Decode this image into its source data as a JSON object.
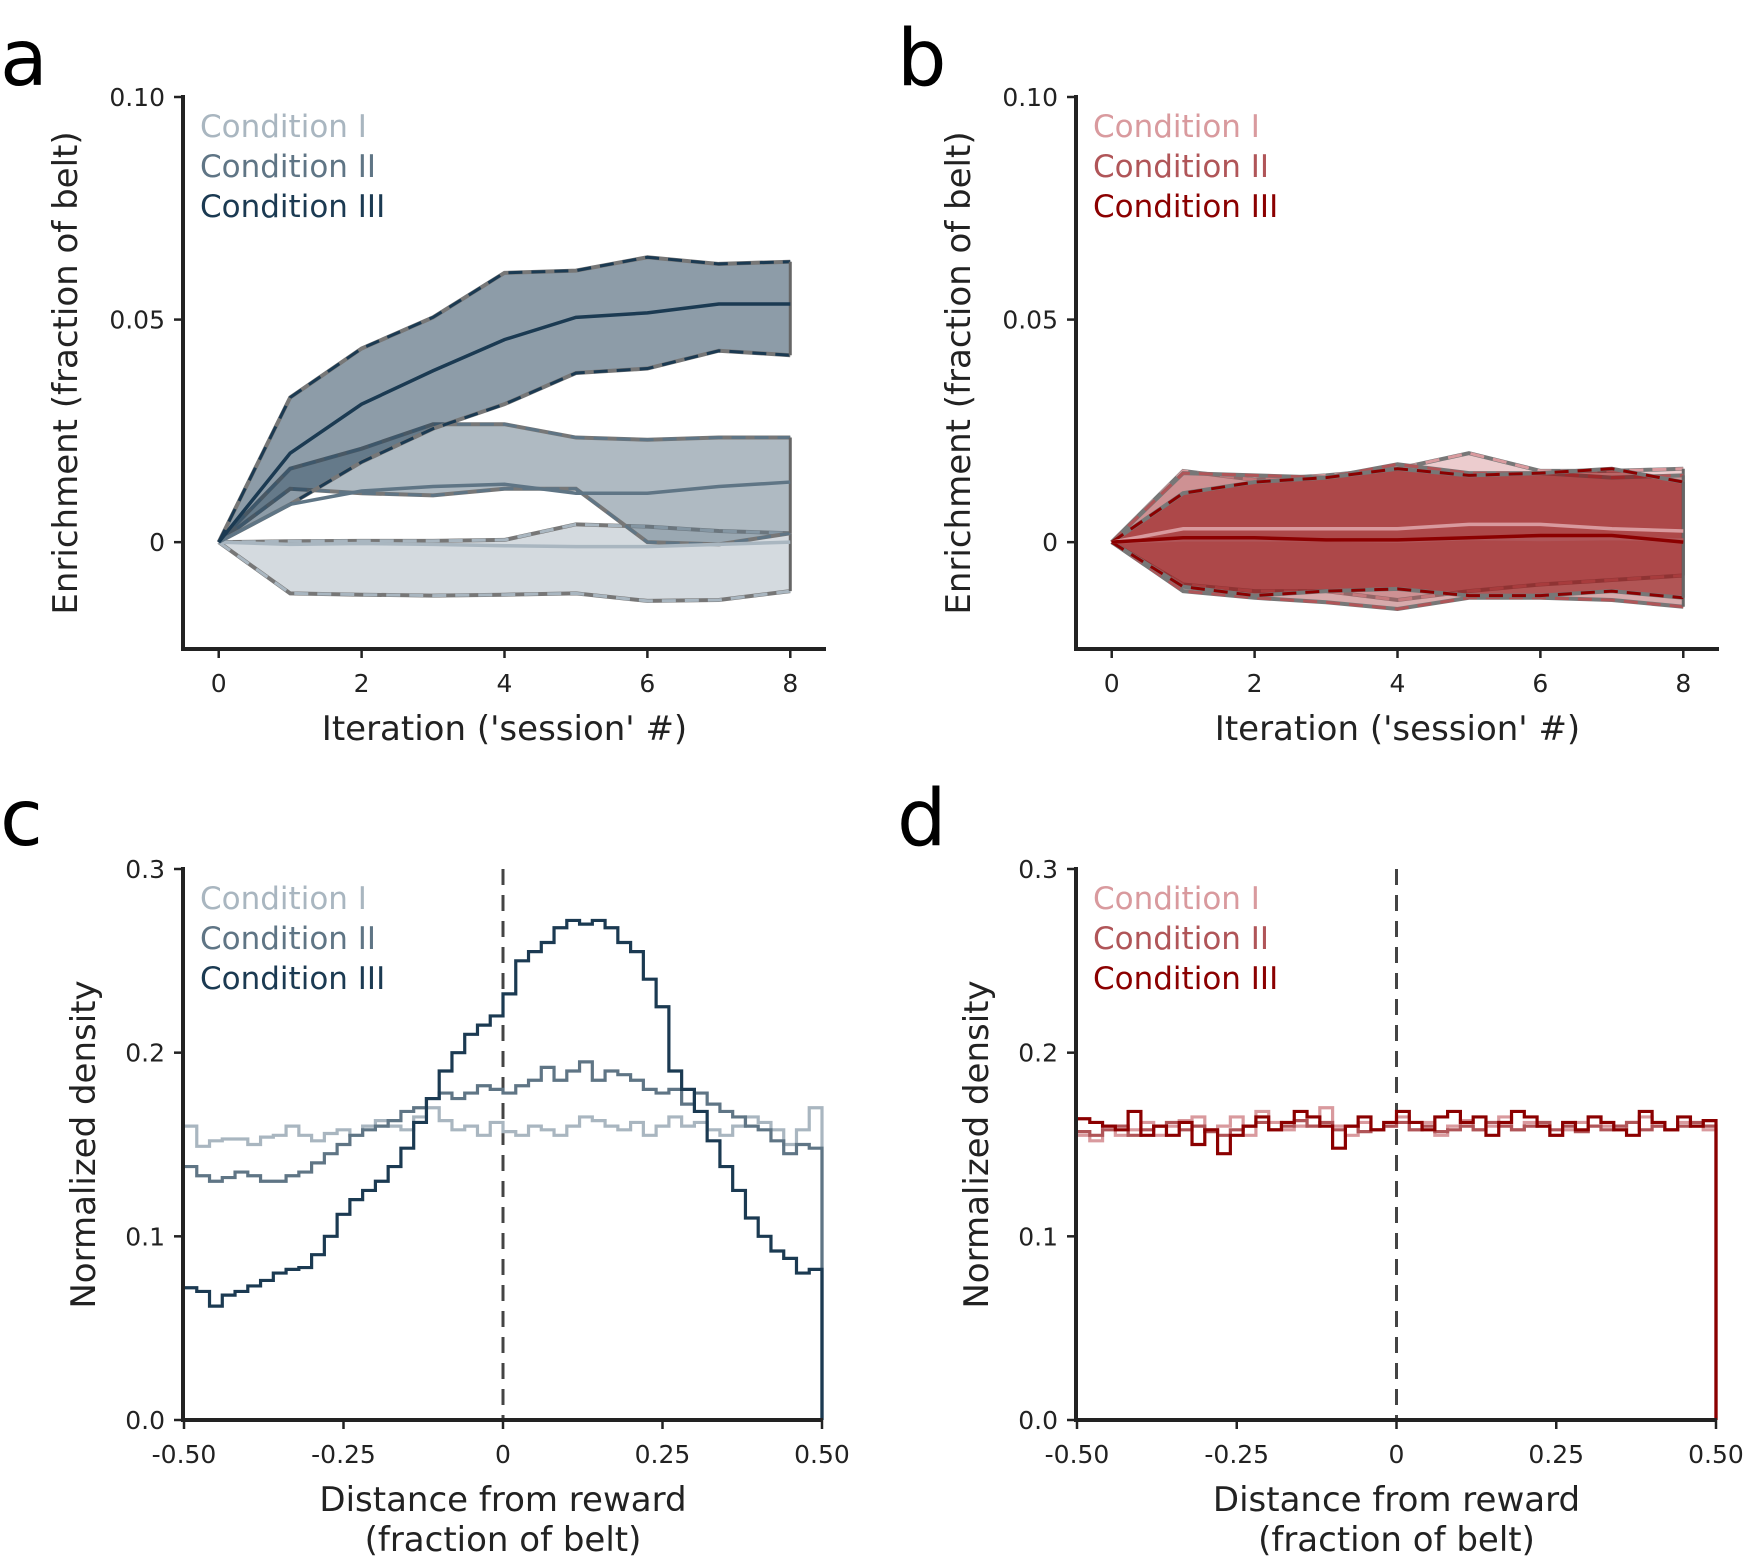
{
  "chart_data": [
    {
      "panel": "a",
      "type": "area",
      "title": "",
      "xlabel": "Iteration ('session' #)",
      "ylabel": "Enrichment (fraction of belt)",
      "xlim": [
        -0.5,
        8.5
      ],
      "ylim": [
        -0.024,
        0.1
      ],
      "xticks": [
        0,
        2,
        4,
        6,
        8
      ],
      "xtick_labels": [
        "0",
        "2",
        "4",
        "6",
        "8"
      ],
      "yticks": [
        0,
        0.05,
        0.1
      ],
      "ytick_labels": [
        "0",
        "0.05",
        "0.10"
      ],
      "legend_position": "top-left",
      "x": [
        0,
        1,
        2,
        3,
        4,
        5,
        6,
        7,
        8
      ],
      "series": [
        {
          "name": "Condition I",
          "color": "#a9b6c0",
          "mean": [
            0,
            -0.0005,
            -0.0003,
            -0.0005,
            -0.0008,
            -0.001,
            -0.001,
            -0.0005,
            0
          ],
          "lower": [
            0,
            -0.0115,
            -0.0118,
            -0.012,
            -0.0118,
            -0.0115,
            -0.0132,
            -0.013,
            -0.011
          ],
          "upper": [
            0,
            0.0002,
            0.0003,
            0.0003,
            0.0005,
            0.004,
            0.0035,
            0.0025,
            0.002
          ]
        },
        {
          "name": "Condition II",
          "color": "#5f7585",
          "mean": [
            0,
            0.0085,
            0.0115,
            0.0125,
            0.013,
            0.011,
            0.011,
            0.0125,
            0.0135
          ],
          "lower": [
            0,
            0.012,
            0.011,
            0.0105,
            0.012,
            0.012,
            0.0,
            -0.0005,
            0.002
          ],
          "upper": [
            0,
            0.0165,
            0.021,
            0.0265,
            0.0265,
            0.0235,
            0.023,
            0.0235,
            0.0235
          ]
        },
        {
          "name": "Condition III",
          "color": "#1b3a52",
          "mean": [
            0,
            0.02,
            0.031,
            0.0385,
            0.0455,
            0.0505,
            0.0515,
            0.0535,
            0.0535
          ],
          "lower": [
            0,
            0.0085,
            0.018,
            0.0255,
            0.031,
            0.038,
            0.039,
            0.043,
            0.042
          ],
          "upper": [
            0,
            0.0325,
            0.0435,
            0.0505,
            0.0605,
            0.061,
            0.064,
            0.0625,
            0.063
          ]
        }
      ]
    },
    {
      "panel": "b",
      "type": "area",
      "title": "",
      "xlabel": "Iteration ('session' #)",
      "ylabel": "Enrichment (fraction of belt)",
      "xlim": [
        -0.5,
        8.5
      ],
      "ylim": [
        -0.024,
        0.1
      ],
      "xticks": [
        0,
        2,
        4,
        6,
        8
      ],
      "xtick_labels": [
        "0",
        "2",
        "4",
        "6",
        "8"
      ],
      "yticks": [
        0,
        0.05,
        0.1
      ],
      "ytick_labels": [
        "0",
        "0.05",
        "0.10"
      ],
      "legend_position": "top-left",
      "x": [
        0,
        1,
        2,
        3,
        4,
        5,
        6,
        7,
        8
      ],
      "series": [
        {
          "name": "Condition I",
          "color": "#d99a9e",
          "mean": [
            0,
            0.003,
            0.003,
            0.003,
            0.003,
            0.004,
            0.004,
            0.003,
            0.0025
          ],
          "lower": [
            0,
            -0.0095,
            -0.011,
            -0.011,
            -0.013,
            -0.011,
            -0.0095,
            -0.0085,
            -0.0075
          ],
          "upper": [
            0,
            0.016,
            0.014,
            0.015,
            0.0165,
            0.02,
            0.016,
            0.016,
            0.0165
          ]
        },
        {
          "name": "Condition II",
          "color": "#b05558",
          "mean": [
            0,
            0.0005,
            0.0005,
            0.0005,
            0.0002,
            0.0008,
            0.0006,
            0.0008,
            0.0005
          ],
          "lower": [
            0,
            -0.011,
            -0.0125,
            -0.0135,
            -0.015,
            -0.0125,
            -0.0125,
            -0.013,
            -0.0145
          ],
          "upper": [
            0,
            0.0155,
            0.015,
            0.0145,
            0.0175,
            0.0155,
            0.0155,
            0.0145,
            0.015
          ]
        },
        {
          "name": "Condition III",
          "color": "#8b0000",
          "mean": [
            0,
            0.001,
            0.001,
            0.0005,
            0.0005,
            0.001,
            0.0015,
            0.0015,
            0.0
          ],
          "lower": [
            0,
            -0.01,
            -0.012,
            -0.011,
            -0.0105,
            -0.012,
            -0.012,
            -0.011,
            -0.0125
          ],
          "upper": [
            0,
            0.011,
            0.0135,
            0.0145,
            0.0165,
            0.015,
            0.0155,
            0.0165,
            0.0135
          ]
        }
      ]
    },
    {
      "panel": "c",
      "type": "line",
      "title": "",
      "xlabel": "Distance from reward\n(fraction of belt)",
      "ylabel": "Normalized density",
      "xlim": [
        -0.5,
        0.5
      ],
      "ylim": [
        0,
        0.3
      ],
      "xticks": [
        -0.5,
        -0.25,
        0,
        0.25,
        0.5
      ],
      "xtick_labels": [
        "-0.50",
        "-0.25",
        "0",
        "0.25",
        "0.50"
      ],
      "yticks": [
        0,
        0.1,
        0.2,
        0.3
      ],
      "ytick_labels": [
        "0.0",
        "0.1",
        "0.2",
        "0.3"
      ],
      "legend_position": "top-left",
      "reference_line_x": 0,
      "bin_edges_start": -0.5,
      "bin_width": 0.02,
      "series": [
        {
          "name": "Condition I",
          "color": "#a9b6c0",
          "values": [
            0.16,
            0.149,
            0.152,
            0.153,
            0.153,
            0.15,
            0.154,
            0.155,
            0.16,
            0.155,
            0.152,
            0.156,
            0.158,
            0.155,
            0.16,
            0.163,
            0.16,
            0.158,
            0.165,
            0.17,
            0.163,
            0.158,
            0.16,
            0.155,
            0.162,
            0.157,
            0.155,
            0.16,
            0.158,
            0.155,
            0.16,
            0.165,
            0.163,
            0.16,
            0.158,
            0.162,
            0.155,
            0.16,
            0.165,
            0.16,
            0.162,
            0.158,
            0.155,
            0.16,
            0.165,
            0.162,
            0.158,
            0.15,
            0.158,
            0.17
          ]
        },
        {
          "name": "Condition II",
          "color": "#5f7585",
          "values": [
            0.138,
            0.133,
            0.13,
            0.132,
            0.135,
            0.133,
            0.13,
            0.13,
            0.133,
            0.135,
            0.14,
            0.145,
            0.15,
            0.155,
            0.158,
            0.16,
            0.163,
            0.168,
            0.17,
            0.175,
            0.178,
            0.175,
            0.178,
            0.182,
            0.18,
            0.178,
            0.182,
            0.185,
            0.192,
            0.185,
            0.19,
            0.195,
            0.185,
            0.19,
            0.188,
            0.185,
            0.18,
            0.178,
            0.18,
            0.172,
            0.178,
            0.172,
            0.168,
            0.165,
            0.16,
            0.158,
            0.152,
            0.145,
            0.15,
            0.148
          ]
        },
        {
          "name": "Condition III",
          "color": "#1b3a52",
          "values": [
            0.072,
            0.07,
            0.062,
            0.068,
            0.07,
            0.073,
            0.076,
            0.08,
            0.082,
            0.083,
            0.09,
            0.1,
            0.112,
            0.12,
            0.125,
            0.13,
            0.138,
            0.148,
            0.162,
            0.175,
            0.19,
            0.2,
            0.21,
            0.215,
            0.22,
            0.232,
            0.25,
            0.255,
            0.26,
            0.268,
            0.272,
            0.27,
            0.272,
            0.268,
            0.26,
            0.255,
            0.24,
            0.225,
            0.19,
            0.18,
            0.168,
            0.152,
            0.138,
            0.125,
            0.11,
            0.1,
            0.092,
            0.088,
            0.08,
            0.082
          ]
        }
      ]
    },
    {
      "panel": "d",
      "type": "line",
      "title": "",
      "xlabel": "Distance from reward\n(fraction of belt)",
      "ylabel": "Normalized density",
      "xlim": [
        -0.5,
        0.5
      ],
      "ylim": [
        0,
        0.3
      ],
      "xticks": [
        -0.5,
        -0.25,
        0,
        0.25,
        0.5
      ],
      "xtick_labels": [
        "-0.50",
        "-0.25",
        "0",
        "0.25",
        "0.50"
      ],
      "yticks": [
        0,
        0.1,
        0.2,
        0.3
      ],
      "ytick_labels": [
        "0.0",
        "0.1",
        "0.2",
        "0.3"
      ],
      "legend_position": "top-left",
      "reference_line_x": 0,
      "bin_edges_start": -0.5,
      "bin_width": 0.02,
      "series": [
        {
          "name": "Condition I",
          "color": "#d99a9e",
          "values": [
            0.155,
            0.152,
            0.16,
            0.155,
            0.158,
            0.162,
            0.155,
            0.16,
            0.163,
            0.165,
            0.158,
            0.16,
            0.165,
            0.155,
            0.168,
            0.162,
            0.158,
            0.16,
            0.165,
            0.17,
            0.16,
            0.155,
            0.162,
            0.158,
            0.16,
            0.165,
            0.158,
            0.162,
            0.155,
            0.16,
            0.163,
            0.158,
            0.16,
            0.165,
            0.158,
            0.162,
            0.16,
            0.155,
            0.158,
            0.162,
            0.165,
            0.16,
            0.158,
            0.162,
            0.165,
            0.16,
            0.158,
            0.162,
            0.16,
            0.158
          ]
        },
        {
          "name": "Condition II",
          "color": "#b05558",
          "values": [
            0.157,
            0.155,
            0.158,
            0.16,
            0.155,
            0.158,
            0.16,
            0.162,
            0.158,
            0.16,
            0.157,
            0.155,
            0.158,
            0.16,
            0.162,
            0.158,
            0.16,
            0.163,
            0.16,
            0.162,
            0.158,
            0.16,
            0.157,
            0.158,
            0.16,
            0.162,
            0.158,
            0.16,
            0.157,
            0.158,
            0.16,
            0.158,
            0.162,
            0.16,
            0.158,
            0.16,
            0.162,
            0.158,
            0.16,
            0.157,
            0.16,
            0.158,
            0.16,
            0.162,
            0.158,
            0.16,
            0.158,
            0.16,
            0.162,
            0.16
          ]
        },
        {
          "name": "Condition III",
          "color": "#8b0000",
          "values": [
            0.164,
            0.162,
            0.16,
            0.158,
            0.168,
            0.155,
            0.16,
            0.155,
            0.162,
            0.15,
            0.158,
            0.145,
            0.155,
            0.16,
            0.165,
            0.158,
            0.162,
            0.168,
            0.165,
            0.16,
            0.148,
            0.16,
            0.165,
            0.158,
            0.162,
            0.168,
            0.162,
            0.158,
            0.165,
            0.168,
            0.162,
            0.165,
            0.155,
            0.162,
            0.168,
            0.165,
            0.16,
            0.155,
            0.162,
            0.158,
            0.165,
            0.162,
            0.158,
            0.155,
            0.168,
            0.162,
            0.158,
            0.165,
            0.16,
            0.163
          ]
        }
      ]
    }
  ]
}
